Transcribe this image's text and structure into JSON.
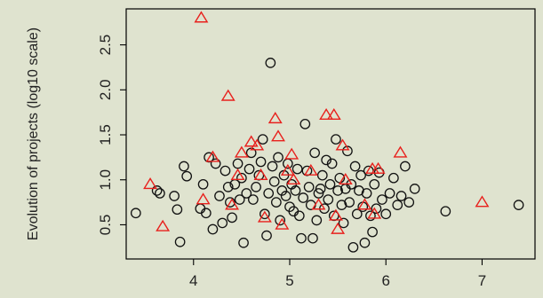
{
  "chart_data": {
    "type": "scatter",
    "title": "",
    "xlabel": "",
    "ylabel": "Evolution of projects (log10 scale)",
    "xlim": [
      3.3,
      7.55
    ],
    "ylim": [
      0.12,
      2.9
    ],
    "xticks": [
      4,
      5,
      6,
      7
    ],
    "yticks": [
      0.5,
      1.0,
      1.5,
      2.0,
      2.5
    ],
    "xtick_labels": [
      "4",
      "5",
      "6",
      "7"
    ],
    "ytick_labels": [
      "0.5",
      "1.0",
      "1.5",
      "2.0",
      "2.5"
    ],
    "grid": false,
    "legend": "none",
    "series": [
      {
        "marker": "circle",
        "color": "#111111",
        "points": [
          [
            3.4,
            0.63
          ],
          [
            3.62,
            0.88
          ],
          [
            3.65,
            0.85
          ],
          [
            3.8,
            0.82
          ],
          [
            3.83,
            0.67
          ],
          [
            3.86,
            0.31
          ],
          [
            3.9,
            1.15
          ],
          [
            3.93,
            1.04
          ],
          [
            4.07,
            0.68
          ],
          [
            4.1,
            0.95
          ],
          [
            4.13,
            0.63
          ],
          [
            4.16,
            1.25
          ],
          [
            4.2,
            0.45
          ],
          [
            4.23,
            1.18
          ],
          [
            4.27,
            0.82
          ],
          [
            4.3,
            0.52
          ],
          [
            4.33,
            1.1
          ],
          [
            4.36,
            0.92
          ],
          [
            4.38,
            0.75
          ],
          [
            4.4,
            0.58
          ],
          [
            4.43,
            0.95
          ],
          [
            4.46,
            1.18
          ],
          [
            4.48,
            0.78
          ],
          [
            4.5,
            1.02
          ],
          [
            4.52,
            0.3
          ],
          [
            4.55,
            0.85
          ],
          [
            4.58,
            1.12
          ],
          [
            4.6,
            1.3
          ],
          [
            4.62,
            0.78
          ],
          [
            4.65,
            0.92
          ],
          [
            4.68,
            1.05
          ],
          [
            4.7,
            1.2
          ],
          [
            4.72,
            1.45
          ],
          [
            4.74,
            0.62
          ],
          [
            4.76,
            0.38
          ],
          [
            4.78,
            0.85
          ],
          [
            4.8,
            2.3
          ],
          [
            4.82,
            1.15
          ],
          [
            4.84,
            0.98
          ],
          [
            4.86,
            0.75
          ],
          [
            4.88,
            1.25
          ],
          [
            4.9,
            0.55
          ],
          [
            4.92,
            0.88
          ],
          [
            4.94,
            1.05
          ],
          [
            4.96,
            0.82
          ],
          [
            4.98,
            1.18
          ],
          [
            5.0,
            0.7
          ],
          [
            5.02,
            0.95
          ],
          [
            5.04,
            0.65
          ],
          [
            5.06,
            0.88
          ],
          [
            5.08,
            1.12
          ],
          [
            5.1,
            0.6
          ],
          [
            5.12,
            0.35
          ],
          [
            5.14,
            0.8
          ],
          [
            5.16,
            1.62
          ],
          [
            5.18,
            1.1
          ],
          [
            5.2,
            0.92
          ],
          [
            5.22,
            0.72
          ],
          [
            5.24,
            0.35
          ],
          [
            5.26,
            1.3
          ],
          [
            5.28,
            0.55
          ],
          [
            5.3,
            0.85
          ],
          [
            5.32,
            0.9
          ],
          [
            5.34,
            1.05
          ],
          [
            5.36,
            0.68
          ],
          [
            5.38,
            1.22
          ],
          [
            5.4,
            0.78
          ],
          [
            5.42,
            0.95
          ],
          [
            5.44,
            1.18
          ],
          [
            5.46,
            0.6
          ],
          [
            5.48,
            1.45
          ],
          [
            5.5,
            0.88
          ],
          [
            5.52,
            1.02
          ],
          [
            5.54,
            0.72
          ],
          [
            5.56,
            0.52
          ],
          [
            5.58,
            0.9
          ],
          [
            5.6,
            1.32
          ],
          [
            5.62,
            0.75
          ],
          [
            5.64,
            0.95
          ],
          [
            5.66,
            0.25
          ],
          [
            5.68,
            1.15
          ],
          [
            5.7,
            0.62
          ],
          [
            5.72,
            0.88
          ],
          [
            5.74,
            1.05
          ],
          [
            5.76,
            0.7
          ],
          [
            5.78,
            0.3
          ],
          [
            5.8,
            0.85
          ],
          [
            5.82,
            1.1
          ],
          [
            5.84,
            0.6
          ],
          [
            5.86,
            0.42
          ],
          [
            5.88,
            0.95
          ],
          [
            5.9,
            0.68
          ],
          [
            5.93,
            1.08
          ],
          [
            5.96,
            0.78
          ],
          [
            6.0,
            0.62
          ],
          [
            6.04,
            0.85
          ],
          [
            6.08,
            1.02
          ],
          [
            6.12,
            0.72
          ],
          [
            6.16,
            0.82
          ],
          [
            6.2,
            1.15
          ],
          [
            6.24,
            0.75
          ],
          [
            6.3,
            0.9
          ],
          [
            6.62,
            0.65
          ],
          [
            7.38,
            0.72
          ]
        ]
      },
      {
        "marker": "triangle",
        "color": "#e8201c",
        "points": [
          [
            3.55,
            0.95
          ],
          [
            3.68,
            0.48
          ],
          [
            4.08,
            2.8
          ],
          [
            4.1,
            0.78
          ],
          [
            4.2,
            1.25
          ],
          [
            4.36,
            1.93
          ],
          [
            4.4,
            0.72
          ],
          [
            4.46,
            1.05
          ],
          [
            4.5,
            1.3
          ],
          [
            4.6,
            1.42
          ],
          [
            4.66,
            1.38
          ],
          [
            4.7,
            1.05
          ],
          [
            4.74,
            0.58
          ],
          [
            4.85,
            1.68
          ],
          [
            4.88,
            1.48
          ],
          [
            4.92,
            0.5
          ],
          [
            4.98,
            1.1
          ],
          [
            5.02,
            1.28
          ],
          [
            5.04,
            1.0
          ],
          [
            5.22,
            1.1
          ],
          [
            5.3,
            0.72
          ],
          [
            5.38,
            1.72
          ],
          [
            5.46,
            1.72
          ],
          [
            5.48,
            0.6
          ],
          [
            5.5,
            0.45
          ],
          [
            5.55,
            1.38
          ],
          [
            5.58,
            1.0
          ],
          [
            5.78,
            0.72
          ],
          [
            5.86,
            1.12
          ],
          [
            5.88,
            0.62
          ],
          [
            5.92,
            1.12
          ],
          [
            6.15,
            1.3
          ],
          [
            7.0,
            0.75
          ]
        ]
      }
    ]
  }
}
